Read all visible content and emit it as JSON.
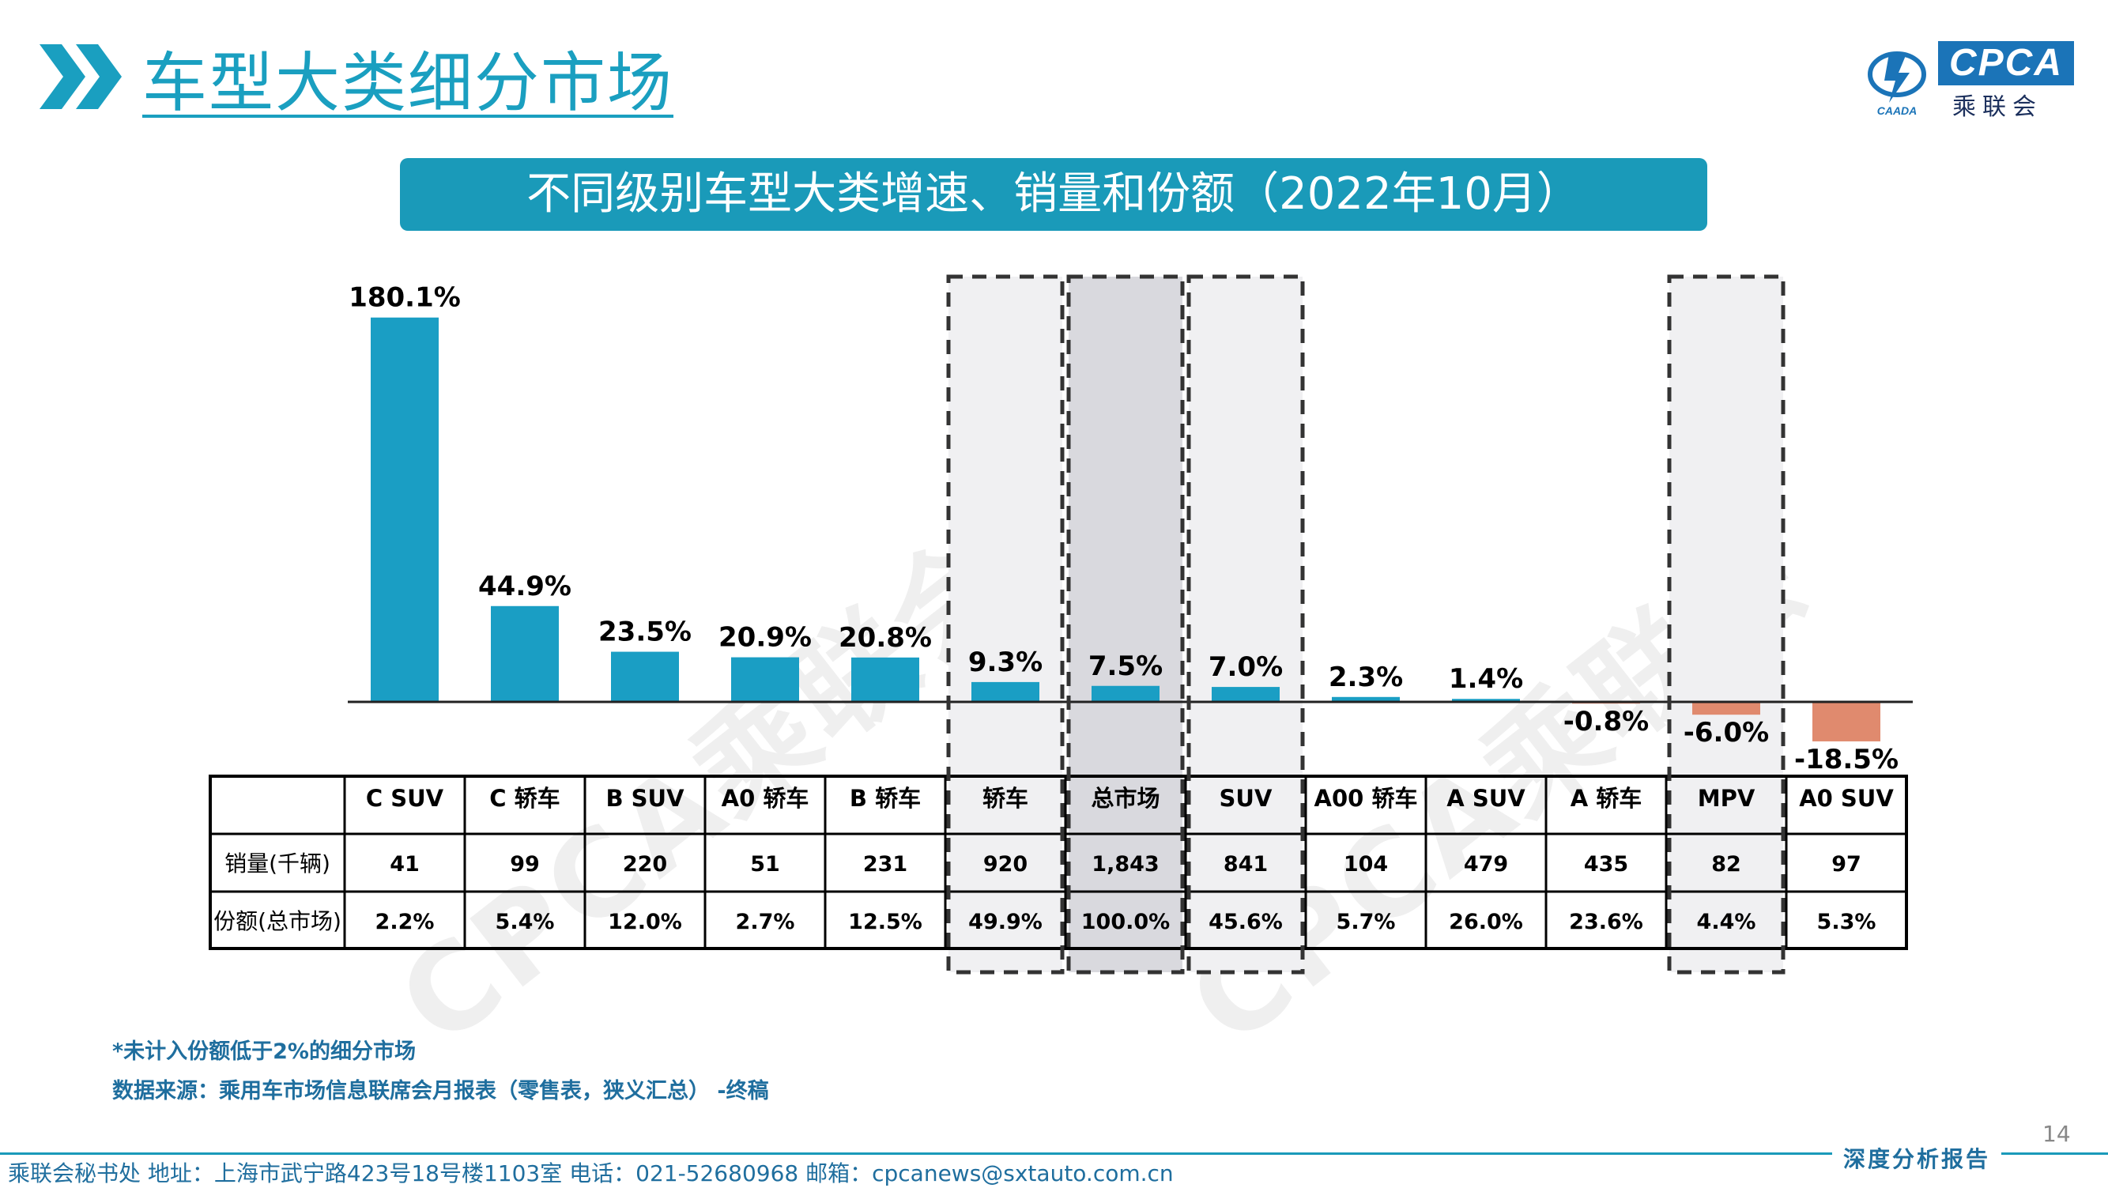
{
  "header": {
    "title": "车型大类细分市场",
    "logo_text": "CPCA",
    "logo_sub": "乘联会",
    "logo_mark_text": "CAADA"
  },
  "banner": {
    "title": "不同级别车型大类增速、销量和份额（2022年10月）"
  },
  "watermark": "CPCA乘联会",
  "chart_data": {
    "type": "bar",
    "title": "不同级别车型大类增速、销量和份额（2022年10月）",
    "categories": [
      "C SUV",
      "C 轿车",
      "B SUV",
      "A0 轿车",
      "B 轿车",
      "轿车",
      "总市场",
      "SUV",
      "A00 轿车",
      "A SUV",
      "A 轿车",
      "MPV",
      "A0 SUV"
    ],
    "values": [
      180.1,
      44.9,
      23.5,
      20.9,
      20.8,
      9.3,
      7.5,
      7.0,
      2.3,
      1.4,
      -0.8,
      -6.0,
      -18.5
    ],
    "labels": [
      "180.1%",
      "44.9%",
      "23.5%",
      "20.9%",
      "20.8%",
      "9.3%",
      "7.5%",
      "7.0%",
      "2.3%",
      "1.4%",
      "-0.8%",
      "-6.0%",
      "-18.5%"
    ],
    "unit": "%",
    "highlighted": [
      "轿车",
      "总市场",
      "SUV",
      "MPV"
    ],
    "colors": {
      "positive": "#1a9ec4",
      "negative": "#e08a6e",
      "highlight_bg": "#f0f0f2",
      "total_bg": "#d9d9de"
    }
  },
  "table": {
    "row_headers": [
      "销量(千辆)",
      "份额(总市场)"
    ],
    "sales": [
      "41",
      "99",
      "220",
      "51",
      "231",
      "920",
      "1,843",
      "841",
      "104",
      "479",
      "435",
      "82",
      "97"
    ],
    "share": [
      "2.2%",
      "5.4%",
      "12.0%",
      "2.7%",
      "12.5%",
      "49.9%",
      "100.0%",
      "45.6%",
      "5.7%",
      "26.0%",
      "23.6%",
      "4.4%",
      "5.3%"
    ]
  },
  "notes": {
    "line1": "*未计入份额低于2%的细分市场",
    "line2": "数据来源：乘用车市场信息联席会月报表（零售表，狭义汇总） -终稿"
  },
  "page_number": "14",
  "footer": {
    "contact": "乘联会秘书处   地址：上海市武宁路423号18号楼1103室  电话：021-52680968   邮箱：cpcanews@sxtauto.com.cn",
    "report_tag": "深度分析报告"
  }
}
